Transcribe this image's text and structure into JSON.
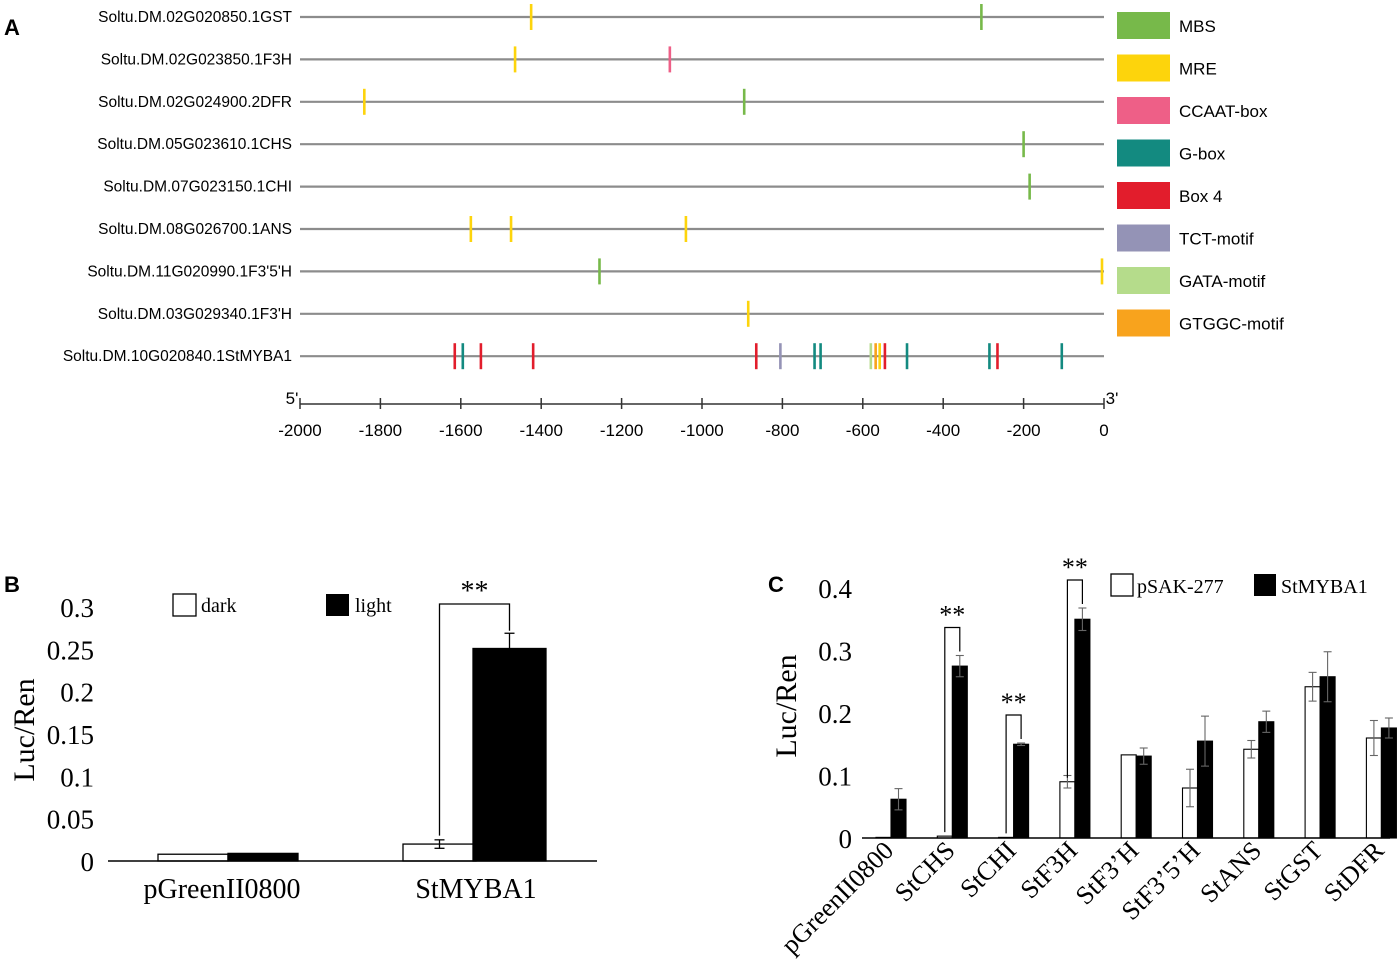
{
  "chart_data": [
    {
      "panel": "A",
      "type": "diagram",
      "title": "",
      "xlabel": "",
      "ylabel": "",
      "xlim": [
        -2000,
        0
      ],
      "axis_ticks": [
        -2000,
        -1800,
        -1600,
        -1400,
        -1200,
        -1000,
        -800,
        -600,
        -400,
        -200,
        0
      ],
      "axis_start_label": "5'",
      "axis_end_label": "3'",
      "legend": [
        {
          "name": "MBS",
          "color": "#77b94a"
        },
        {
          "name": "MRE",
          "color": "#fdd40c"
        },
        {
          "name": "CCAAT-box",
          "color": "#ee5f87"
        },
        {
          "name": "G-box",
          "color": "#138a80"
        },
        {
          "name": "Box 4",
          "color": "#e21d2c"
        },
        {
          "name": "TCT-motif",
          "color": "#9493b6"
        },
        {
          "name": "GATA-motif",
          "color": "#b5dc8b"
        },
        {
          "name": "GTGGC-motif",
          "color": "#f8a31d"
        }
      ],
      "genes": [
        {
          "name": "Soltu.DM.02G020850.1GST",
          "motifs": [
            {
              "type": "MRE",
              "pos": -1425
            },
            {
              "type": "MBS",
              "pos": -305
            }
          ]
        },
        {
          "name": "Soltu.DM.02G023850.1F3H",
          "motifs": [
            {
              "type": "MRE",
              "pos": -1465
            },
            {
              "type": "CCAAT-box",
              "pos": -1080
            }
          ]
        },
        {
          "name": "Soltu.DM.02G024900.2DFR",
          "motifs": [
            {
              "type": "MRE",
              "pos": -1840
            },
            {
              "type": "MBS",
              "pos": -895
            }
          ]
        },
        {
          "name": "Soltu.DM.05G023610.1CHS",
          "motifs": [
            {
              "type": "MBS",
              "pos": -200
            }
          ]
        },
        {
          "name": "Soltu.DM.07G023150.1CHI",
          "motifs": [
            {
              "type": "MBS",
              "pos": -185
            }
          ]
        },
        {
          "name": "Soltu.DM.08G026700.1ANS",
          "motifs": [
            {
              "type": "MRE",
              "pos": -1575
            },
            {
              "type": "MRE",
              "pos": -1475
            },
            {
              "type": "MRE",
              "pos": -1040
            }
          ]
        },
        {
          "name": "Soltu.DM.11G020990.1F3'5'H",
          "motifs": [
            {
              "type": "MBS",
              "pos": -1255
            },
            {
              "type": "MRE",
              "pos": -5
            }
          ]
        },
        {
          "name": "Soltu.DM.03G029340.1F3'H",
          "motifs": [
            {
              "type": "MRE",
              "pos": -885
            }
          ]
        },
        {
          "name": "Soltu.DM.10G020840.1StMYBA1",
          "motifs": [
            {
              "type": "Box 4",
              "pos": -1615
            },
            {
              "type": "G-box",
              "pos": -1595
            },
            {
              "type": "Box 4",
              "pos": -1550
            },
            {
              "type": "Box 4",
              "pos": -1420
            },
            {
              "type": "Box 4",
              "pos": -865
            },
            {
              "type": "TCT-motif",
              "pos": -805
            },
            {
              "type": "G-box",
              "pos": -720
            },
            {
              "type": "G-box",
              "pos": -705
            },
            {
              "type": "GATA-motif",
              "pos": -580
            },
            {
              "type": "GTGGC-motif",
              "pos": -568
            },
            {
              "type": "MRE",
              "pos": -558
            },
            {
              "type": "Box 4",
              "pos": -545
            },
            {
              "type": "G-box",
              "pos": -490
            },
            {
              "type": "G-box",
              "pos": -285
            },
            {
              "type": "Box 4",
              "pos": -265
            },
            {
              "type": "G-box",
              "pos": -105
            }
          ]
        }
      ]
    },
    {
      "panel": "B",
      "type": "bar",
      "title": "",
      "xlabel": "",
      "ylabel": "Luc/Ren",
      "ylim": [
        0,
        0.3
      ],
      "yticks": [
        "0",
        "0.05",
        "0.1",
        "0.15",
        "0.2",
        "0.25",
        "0.3"
      ],
      "categories": [
        "pGreenII0800",
        "StMYBA1"
      ],
      "series": [
        {
          "name": "dark",
          "fill": "#ffffff",
          "values": [
            0.008,
            0.02
          ],
          "errors": [
            0.001,
            0.005
          ]
        },
        {
          "name": "light",
          "fill": "#000000",
          "values": [
            0.009,
            0.251
          ],
          "errors": [
            0.001,
            0.018
          ]
        }
      ],
      "significance": [
        {
          "category": "StMYBA1",
          "label": "**"
        }
      ]
    },
    {
      "panel": "C",
      "type": "bar",
      "title": "",
      "xlabel": "",
      "ylabel": "Luc/Ren",
      "ylim": [
        0,
        0.4
      ],
      "yticks": [
        "0",
        "0.1",
        "0.2",
        "0.3",
        "0.4"
      ],
      "categories": [
        "pGreenII0800",
        "StCHS",
        "StCHI",
        "StF3H",
        "StF3’H",
        "StF3’5’H",
        "StANS",
        "StGST",
        "StDFR"
      ],
      "series": [
        {
          "name": "pSAK-277",
          "fill": "#ffffff",
          "values": [
            0.001,
            0.003,
            0.001,
            0.09,
            0.133,
            0.08,
            0.142,
            0.242,
            0.16
          ],
          "errors": [
            0,
            0,
            0,
            0.01,
            0,
            0.03,
            0.014,
            0.023,
            0.028
          ]
        },
        {
          "name": "StMYBA1",
          "fill": "#000000",
          "values": [
            0.062,
            0.275,
            0.15,
            0.35,
            0.131,
            0.155,
            0.186,
            0.258,
            0.176
          ],
          "errors": [
            0.017,
            0.017,
            0.002,
            0.018,
            0.013,
            0.04,
            0.017,
            0.04,
            0.016
          ]
        }
      ],
      "significance": [
        {
          "category": "StCHS",
          "label": "**"
        },
        {
          "category": "StCHI",
          "label": "**"
        },
        {
          "category": "StF3H",
          "label": "**"
        }
      ]
    }
  ],
  "panels": {
    "a": "A",
    "b": "B",
    "c": "C"
  }
}
